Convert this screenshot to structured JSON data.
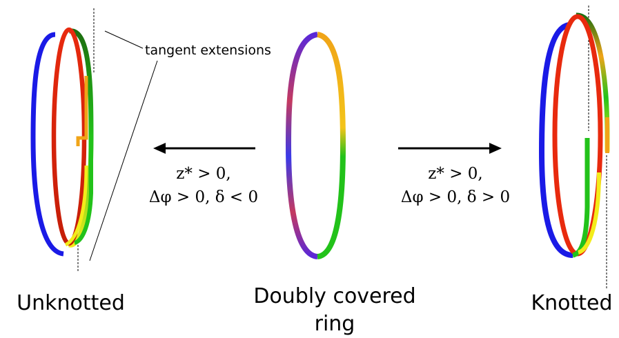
{
  "annotation": {
    "tangent_label": "tangent extensions"
  },
  "captions": {
    "left": "Unknotted",
    "middle_line1": "Doubly covered",
    "middle_line2": "ring",
    "right": "Knotted"
  },
  "conditions": {
    "left_line1": "z* > 0,",
    "left_line2": "Δφ > 0, δ < 0",
    "right_line1": "z* > 0,",
    "right_line2": "Δφ > 0, δ > 0"
  },
  "colors": {
    "blue": "#1a1ae6",
    "red": "#e82a0e",
    "green": "#22c21a",
    "dark_green": "#1d6e10",
    "orange": "#f0a418",
    "yellow": "#f3ec1a"
  }
}
